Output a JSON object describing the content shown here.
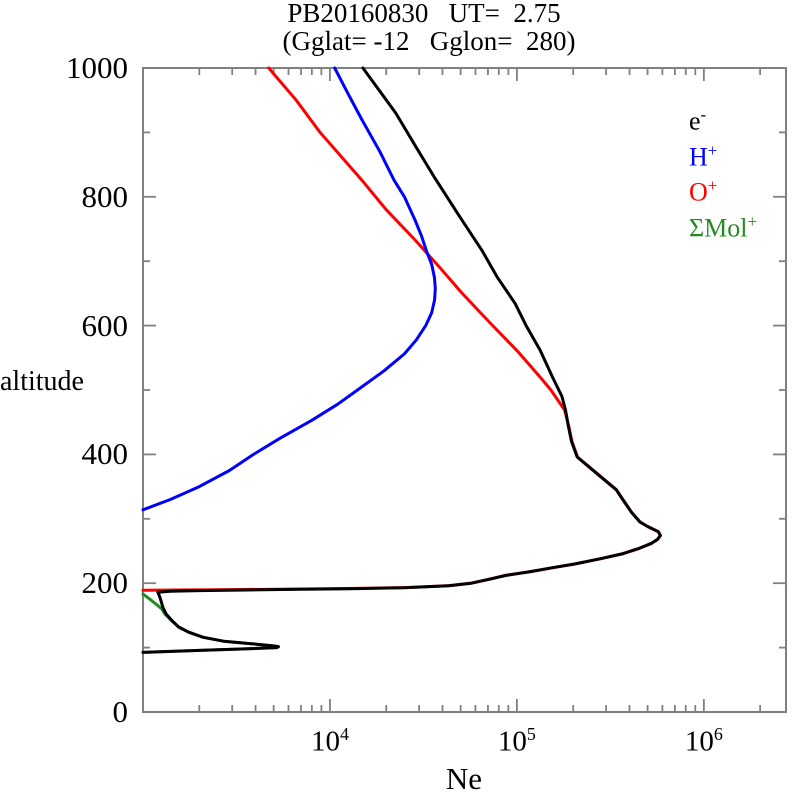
{
  "title": {
    "line1": "PB20160830   UT=  2.75",
    "line2": "(Gglat= -12   Gglon=  280)"
  },
  "axes": {
    "x_label": "Ne",
    "y_label": "altitude",
    "x_base": "10",
    "x_major": [
      {
        "value": 10000,
        "exp": "4"
      },
      {
        "value": 100000,
        "exp": "5"
      },
      {
        "value": 1000000,
        "exp": "6"
      }
    ],
    "x_minor": [
      2000,
      3000,
      4000,
      5000,
      6000,
      7000,
      8000,
      9000,
      20000,
      30000,
      40000,
      50000,
      60000,
      70000,
      80000,
      90000,
      200000,
      300000,
      400000,
      500000,
      600000,
      700000,
      800000,
      900000,
      2000000
    ],
    "y_major": [
      {
        "value": 0,
        "label": "0"
      },
      {
        "value": 200,
        "label": "200"
      },
      {
        "value": 400,
        "label": "400"
      },
      {
        "value": 600,
        "label": "600"
      },
      {
        "value": 800,
        "label": "800"
      },
      {
        "value": 1000,
        "label": "1000"
      }
    ],
    "y_minor": [
      100,
      300,
      500,
      700,
      900
    ]
  },
  "legend": {
    "items": [
      {
        "base": "e",
        "sup": "-",
        "color": "#000000"
      },
      {
        "base": "H",
        "sup": "+",
        "color": "#0000ff"
      },
      {
        "base": "O",
        "sup": "+",
        "color": "#ff0000"
      },
      {
        "base": "ΣMol",
        "sup": "+",
        "color": "#228B22"
      }
    ]
  },
  "colors": {
    "frame": "#808080",
    "text": "#000000",
    "electron": "#000000",
    "h_plus": "#0000ff",
    "o_plus": "#ff0000",
    "mol_plus": "#228B22"
  },
  "chart_data": {
    "type": "line",
    "title": "PB20160830   UT=  2.75  (Gglat= -12  Gglon= 280)",
    "xlabel": "Ne",
    "ylabel": "altitude",
    "xscale": "log",
    "xlim": [
      1000,
      2750000
    ],
    "ylim": [
      0,
      1000
    ],
    "grid": false,
    "legend_position": "upper right inside",
    "points_format": "[altitude_km, density_per_cm3]",
    "draw_order": [
      "mol-plus",
      "o-plus",
      "h-plus",
      "electron"
    ],
    "series": [
      {
        "id": "electron",
        "name": "e-",
        "color": "#000000",
        "points": [
          [
            92.5,
            1000
          ],
          [
            94,
            1350
          ],
          [
            96,
            2100
          ],
          [
            98,
            3500
          ],
          [
            100,
            5200
          ],
          [
            101.5,
            5300
          ],
          [
            103,
            4900
          ],
          [
            106,
            3800
          ],
          [
            110,
            2700
          ],
          [
            116,
            2100
          ],
          [
            124,
            1750
          ],
          [
            132,
            1550
          ],
          [
            142,
            1430
          ],
          [
            152,
            1330
          ],
          [
            162,
            1280
          ],
          [
            172,
            1250
          ],
          [
            180,
            1225
          ],
          [
            186,
            1200
          ],
          [
            187.5,
            1400
          ],
          [
            188.5,
            2000
          ],
          [
            189.5,
            3600
          ],
          [
            190.5,
            7000
          ],
          [
            191.5,
            13000
          ],
          [
            193,
            25000
          ],
          [
            196,
            43000
          ],
          [
            200,
            57000
          ],
          [
            206,
            71000
          ],
          [
            212,
            87000
          ],
          [
            218,
            118000
          ],
          [
            224,
            155000
          ],
          [
            230,
            205000
          ],
          [
            238,
            280000
          ],
          [
            246,
            370000
          ],
          [
            254,
            450000
          ],
          [
            262,
            525000
          ],
          [
            268,
            565000
          ],
          [
            274,
            585000
          ],
          [
            280,
            570000
          ],
          [
            288,
            500000
          ],
          [
            295,
            455000
          ],
          [
            310,
            410000
          ],
          [
            330,
            368000
          ],
          [
            345,
            340000
          ],
          [
            370,
            268000
          ],
          [
            396,
            210000
          ],
          [
            420,
            196000
          ],
          [
            445,
            188000
          ],
          [
            469,
            182000
          ],
          [
            490,
            174000
          ],
          [
            520,
            155000
          ],
          [
            562,
            133000
          ],
          [
            600,
            112000
          ],
          [
            635,
            97500
          ],
          [
            675,
            78500
          ],
          [
            717,
            65000
          ],
          [
            769,
            49500
          ],
          [
            829,
            36400
          ],
          [
            880,
            28500
          ],
          [
            930,
            22500
          ],
          [
            1000,
            15000
          ]
        ]
      },
      {
        "id": "h-plus",
        "name": "H+",
        "color": "#0000ff",
        "points": [
          [
            314,
            1000
          ],
          [
            330,
            1400
          ],
          [
            350,
            2000
          ],
          [
            375,
            2900
          ],
          [
            400,
            3900
          ],
          [
            425,
            5400
          ],
          [
            453,
            8000
          ],
          [
            478,
            11000
          ],
          [
            503,
            14500
          ],
          [
            530,
            19500
          ],
          [
            556,
            25000
          ],
          [
            578,
            29000
          ],
          [
            600,
            32500
          ],
          [
            620,
            35000
          ],
          [
            640,
            36300
          ],
          [
            658,
            36600
          ],
          [
            675,
            36200
          ],
          [
            695,
            35000
          ],
          [
            714,
            33000
          ],
          [
            740,
            30800
          ],
          [
            764,
            28500
          ],
          [
            800,
            25000
          ],
          [
            826,
            22000
          ],
          [
            870,
            18500
          ],
          [
            920,
            14800
          ],
          [
            960,
            12500
          ],
          [
            1000,
            10600
          ]
        ]
      },
      {
        "id": "o-plus",
        "name": "O+",
        "color": "#ff0000",
        "points": [
          [
            189,
            1000
          ],
          [
            189.6,
            1900
          ],
          [
            190.2,
            3600
          ],
          [
            191,
            7200
          ],
          [
            192,
            14000
          ],
          [
            193.4,
            26000
          ],
          [
            196.2,
            44000
          ],
          [
            200.5,
            58000
          ],
          [
            206.5,
            72000
          ],
          [
            212.5,
            88000
          ],
          [
            218,
            119000
          ],
          [
            224,
            156000
          ],
          [
            230,
            206000
          ],
          [
            238,
            281000
          ],
          [
            246,
            371000
          ],
          [
            254,
            451000
          ],
          [
            262,
            526000
          ],
          [
            268,
            566000
          ],
          [
            274,
            586000
          ],
          [
            280,
            571000
          ],
          [
            288,
            501000
          ],
          [
            295,
            456000
          ],
          [
            310,
            411000
          ],
          [
            330,
            369000
          ],
          [
            345,
            341000
          ],
          [
            370,
            269000
          ],
          [
            396,
            211000
          ],
          [
            420,
            197000
          ],
          [
            445,
            189000
          ],
          [
            469,
            180000
          ],
          [
            500,
            152000
          ],
          [
            520,
            133000
          ],
          [
            560,
            101000
          ],
          [
            604,
            72000
          ],
          [
            650,
            51000
          ],
          [
            689,
            39000
          ],
          [
            733,
            28500
          ],
          [
            780,
            20000
          ],
          [
            826,
            14800
          ],
          [
            901,
            8800
          ],
          [
            950,
            6600
          ],
          [
            1000,
            4700
          ]
        ]
      },
      {
        "id": "mol-plus",
        "name": "ΣMol+",
        "color": "#228B22",
        "points": [
          [
            92.5,
            1000
          ],
          [
            94,
            1350
          ],
          [
            96,
            2100
          ],
          [
            98,
            3500
          ],
          [
            100,
            5200
          ],
          [
            101.5,
            5300
          ],
          [
            103,
            4900
          ],
          [
            106,
            3800
          ],
          [
            110,
            2700
          ],
          [
            116,
            2100
          ],
          [
            124,
            1750
          ],
          [
            132,
            1550
          ],
          [
            142,
            1420
          ],
          [
            152,
            1310
          ],
          [
            160,
            1260
          ],
          [
            168,
            1170
          ],
          [
            175,
            1090
          ],
          [
            183,
            1000
          ]
        ]
      }
    ]
  }
}
